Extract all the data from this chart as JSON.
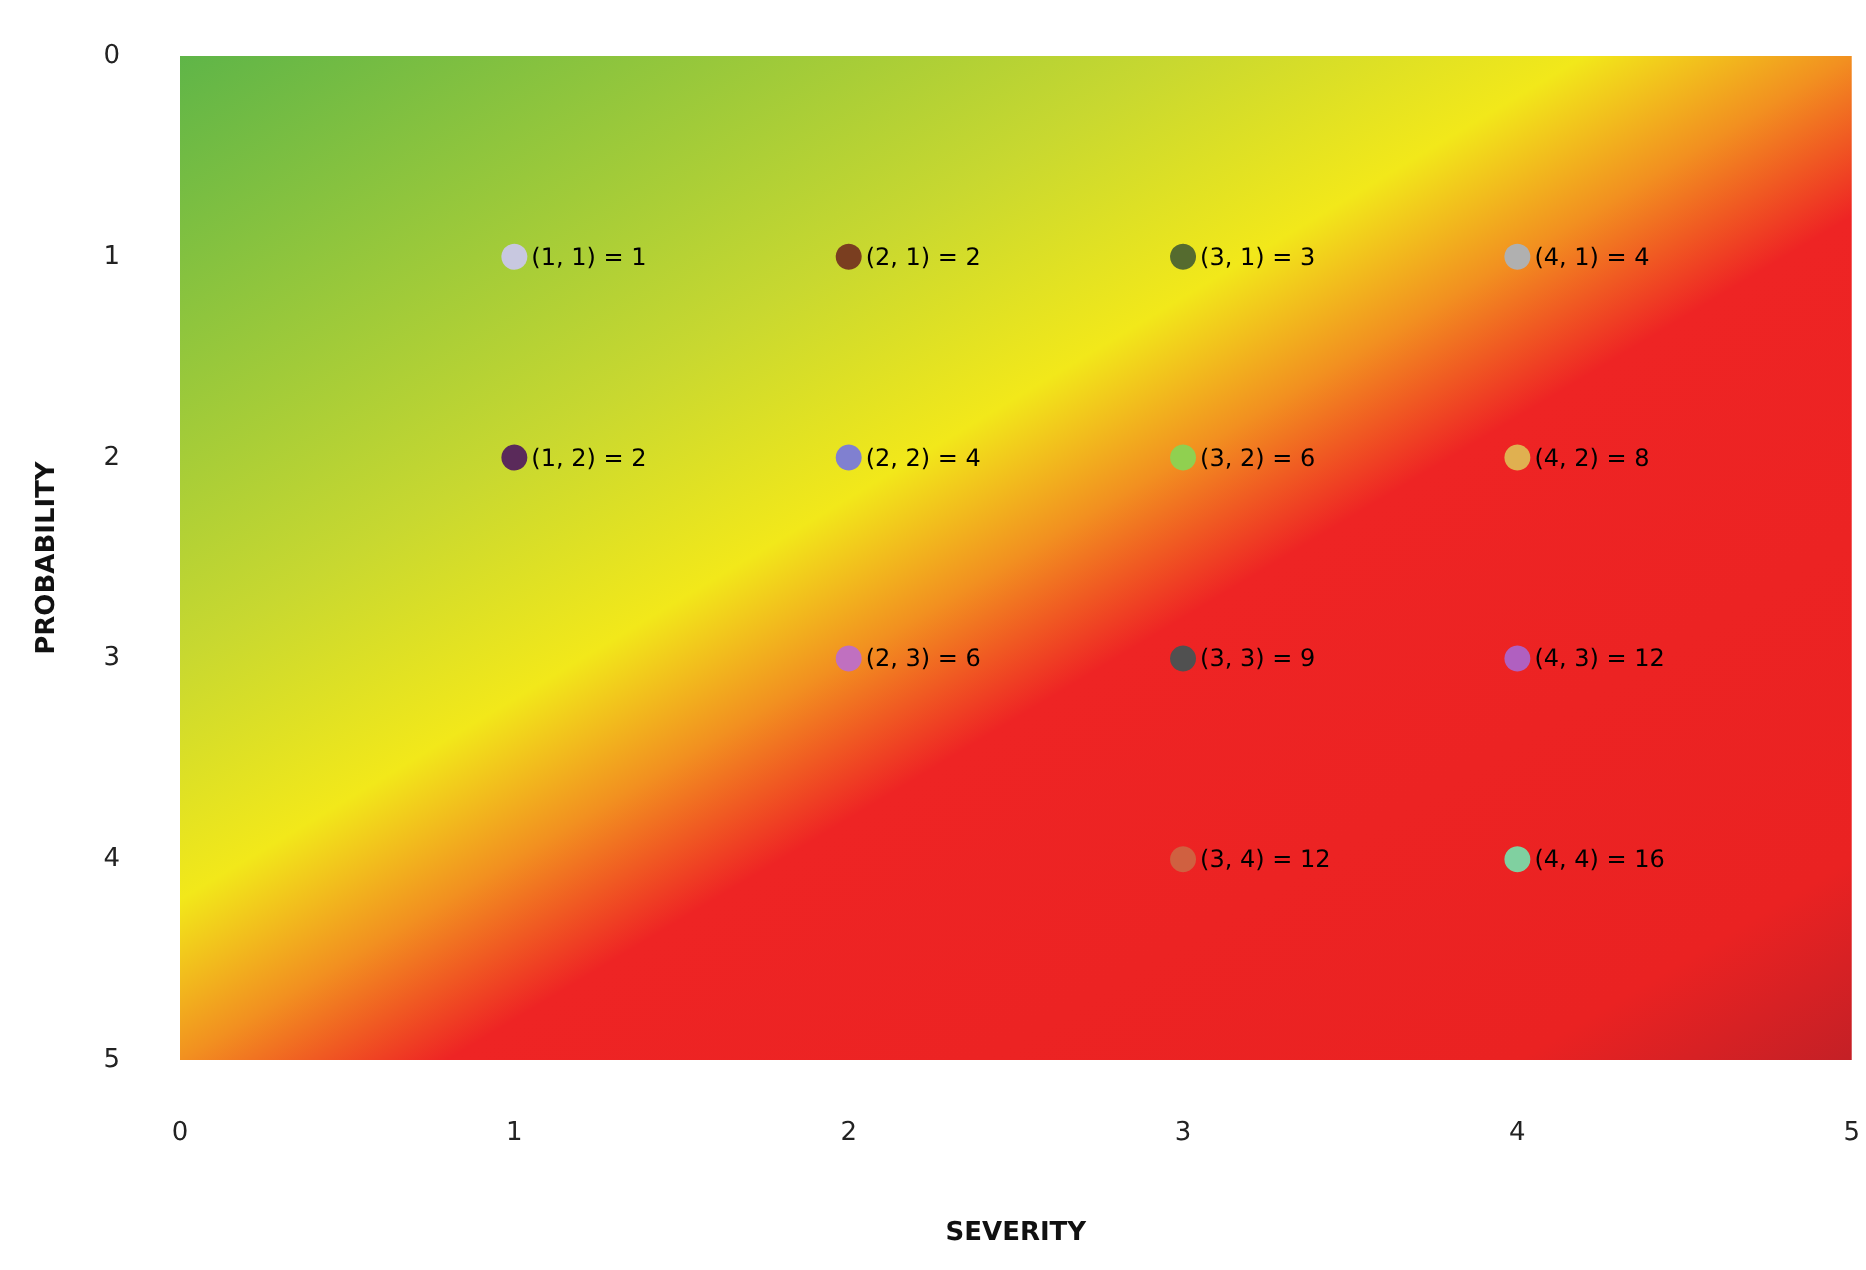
{
  "chart_data": {
    "type": "scatter",
    "xlabel": "SEVERITY",
    "ylabel": "PROBABILITY",
    "x": [
      1,
      2,
      3,
      4,
      1,
      2,
      3,
      4,
      2,
      3,
      4,
      3,
      4
    ],
    "values": [
      1,
      1,
      1,
      1,
      2,
      2,
      2,
      2,
      3,
      3,
      3,
      4,
      4
    ],
    "colors": [
      "#c8c8e0",
      "#7a3e20",
      "#556b2f",
      "#b0b0b0",
      "#5a2a5a",
      "#8080d0",
      "#90d050",
      "#e0b050",
      "#c070c0",
      "#505050",
      "#b060c0",
      "#d06040",
      "#80d0a0"
    ],
    "value_labels": [
      "(1, 1) = 1",
      "(2, 1) = 2",
      "(3, 1) = 3",
      "(4, 1) = 4",
      "(1, 2) = 2",
      "(2, 2) = 4",
      "(3, 2) = 6",
      "(4, 2) = 8",
      "(2, 3) = 6",
      "(3, 3) = 9",
      "(4, 3) = 12",
      "(3, 4) = 12",
      "(4, 4) = 16"
    ],
    "xlim": [
      0,
      5
    ],
    "xticks": [
      0,
      1,
      2,
      3,
      4,
      5
    ],
    "ylim": [
      5,
      0
    ],
    "yticks": [
      0,
      1,
      2,
      3,
      4,
      5
    ],
    "marker": "circle",
    "grid": false
  }
}
